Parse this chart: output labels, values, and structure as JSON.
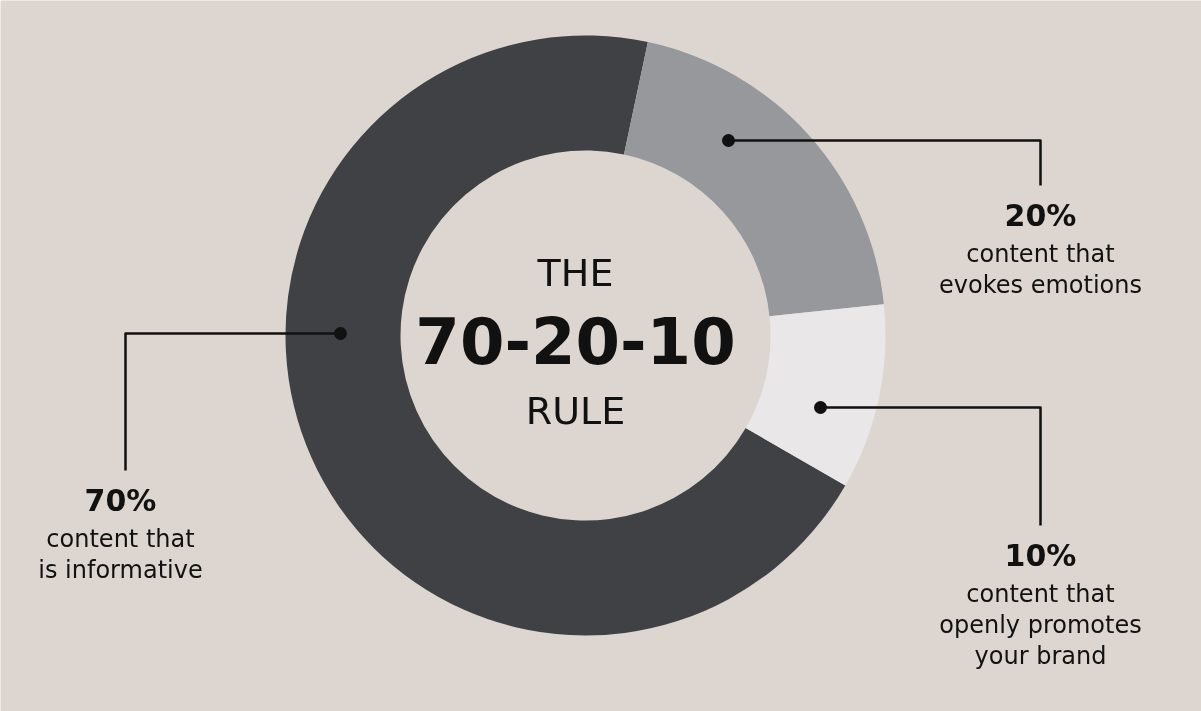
{
  "chart_data": {
    "type": "donut",
    "title": "THE 70-20-10 RULE",
    "categories": [
      "content that is informative",
      "content that evokes emotions",
      "content that openly promotes your brand"
    ],
    "values": [
      70,
      20,
      10
    ],
    "colors": [
      "#3f4144",
      "#97989b",
      "#e9e7e7"
    ],
    "value_labels": [
      "70%",
      "20%",
      "10%"
    ]
  }
}
